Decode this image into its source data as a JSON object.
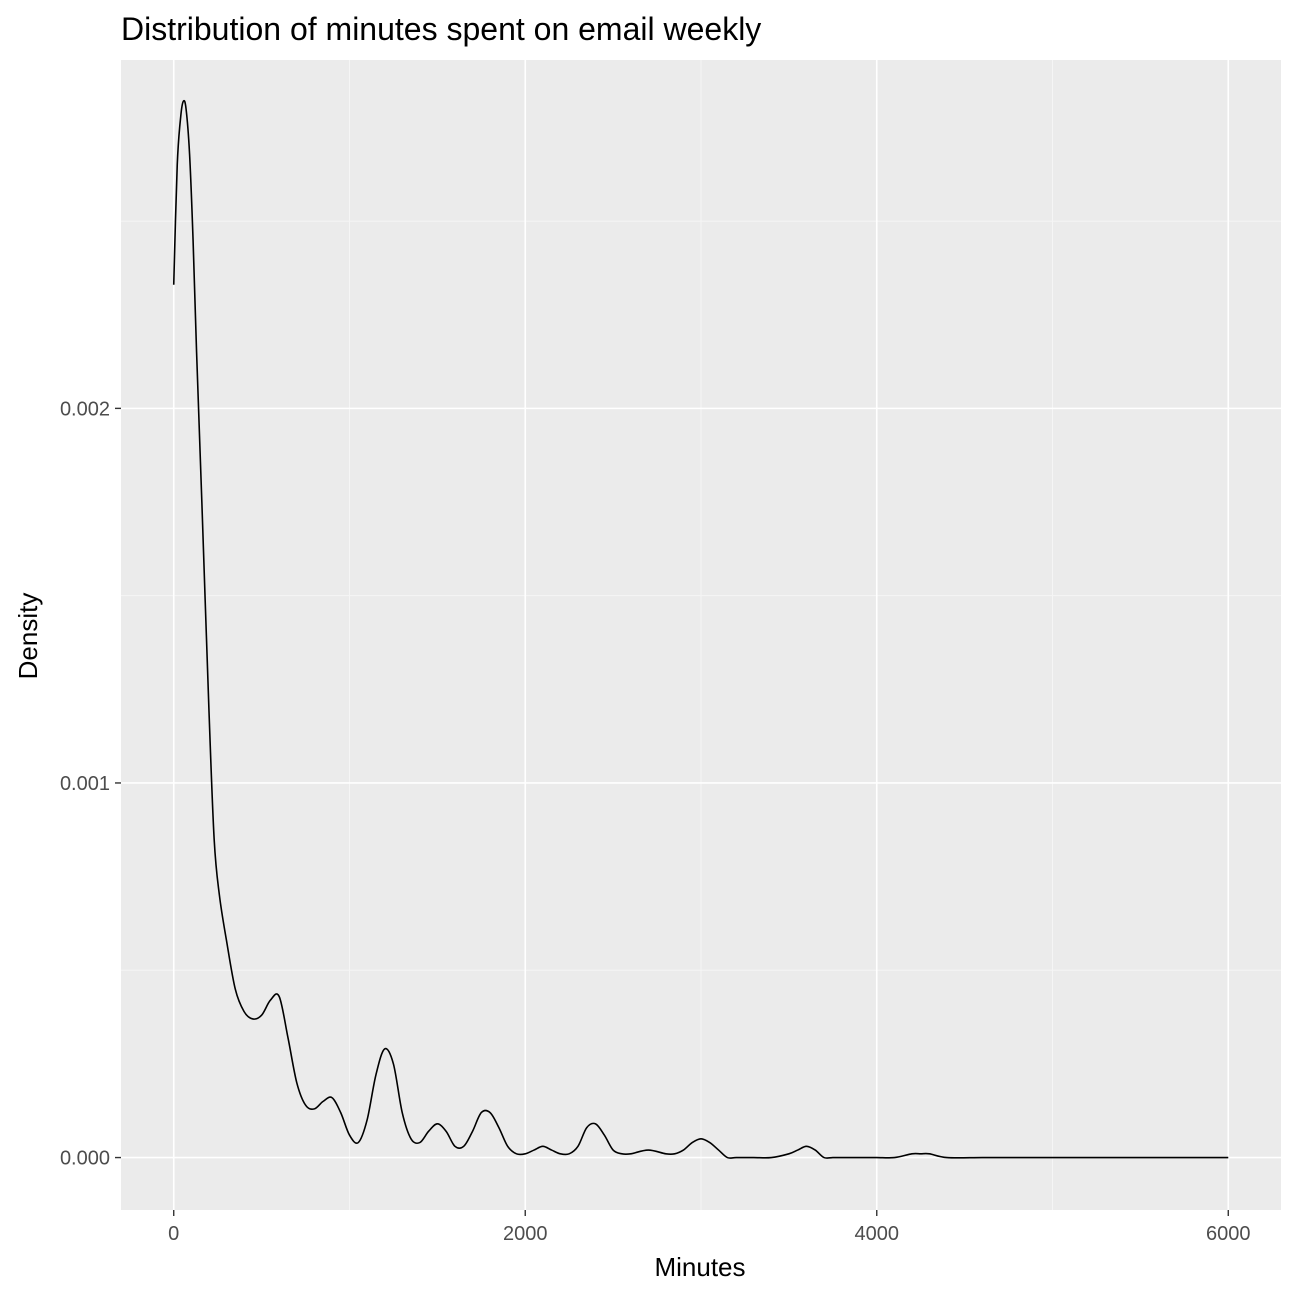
{
  "chart_data": {
    "type": "line",
    "title": "Distribution of minutes spent on email weekly",
    "xlabel": "Minutes",
    "ylabel": "Density",
    "xlim": [
      -300,
      6300
    ],
    "ylim": [
      -0.00014,
      0.00293
    ],
    "x_ticks": [
      {
        "value": 0,
        "label": "0"
      },
      {
        "value": 2000,
        "label": "2000"
      },
      {
        "value": 4000,
        "label": "4000"
      },
      {
        "value": 6000,
        "label": "6000"
      }
    ],
    "y_ticks": [
      {
        "value": 0,
        "label": "0.000"
      },
      {
        "value": 0.001,
        "label": "0.001"
      },
      {
        "value": 0.002,
        "label": "0.002"
      }
    ],
    "grid": true,
    "colors": {
      "panel_background": "#ebebeb",
      "grid_major": "#ffffff",
      "grid_minor": "#f5f5f5",
      "line": "#000000",
      "tick_text": "#4d4d4d",
      "tick_mark": "#333333"
    },
    "series": [
      {
        "x": [
          0,
          20,
          40,
          55,
          70,
          90,
          110,
          130,
          160,
          200,
          230,
          260,
          300,
          350,
          400,
          450,
          500,
          550,
          600,
          650,
          700,
          750,
          800,
          850,
          900,
          950,
          1000,
          1050,
          1100,
          1150,
          1200,
          1250,
          1300,
          1350,
          1400,
          1450,
          1500,
          1550,
          1600,
          1650,
          1700,
          1750,
          1800,
          1850,
          1900,
          1950,
          2000,
          2050,
          2100,
          2150,
          2200,
          2250,
          2300,
          2350,
          2400,
          2450,
          2500,
          2550,
          2600,
          2700,
          2800,
          2850,
          2900,
          2950,
          3000,
          3050,
          3100,
          3150,
          3200,
          3300,
          3400,
          3500,
          3550,
          3600,
          3650,
          3700,
          3750,
          3800,
          3900,
          4000,
          4100,
          4200,
          4250,
          4300,
          4400,
          4600,
          4800,
          5000,
          5200,
          5400,
          5600,
          5800,
          6000
        ],
        "y": [
          0.00233,
          0.00265,
          0.00278,
          0.00282,
          0.0028,
          0.00268,
          0.00245,
          0.00215,
          0.00175,
          0.0012,
          0.00085,
          0.0007,
          0.00058,
          0.00045,
          0.00039,
          0.00037,
          0.00038,
          0.00042,
          0.00043,
          0.00032,
          0.0002,
          0.00014,
          0.00013,
          0.00015,
          0.00016,
          0.00012,
          6e-05,
          4e-05,
          0.0001,
          0.00022,
          0.00029,
          0.00025,
          0.00012,
          5e-05,
          4e-05,
          7e-05,
          9e-05,
          7e-05,
          3e-05,
          3e-05,
          7e-05,
          0.00012,
          0.00012,
          8e-05,
          3e-05,
          1e-05,
          1e-05,
          2e-05,
          3e-05,
          2e-05,
          1e-05,
          1e-05,
          3e-05,
          8e-05,
          9e-05,
          6e-05,
          2e-05,
          1e-05,
          1e-05,
          2e-05,
          1e-05,
          1e-05,
          2e-05,
          4e-05,
          5e-05,
          4e-05,
          2e-05,
          0.0,
          0.0,
          0.0,
          0.0,
          1e-05,
          2e-05,
          3e-05,
          2e-05,
          0.0,
          0.0,
          0.0,
          0.0,
          0.0,
          0.0,
          1e-05,
          1e-05,
          1e-05,
          0.0,
          0.0,
          0.0,
          0.0,
          0.0,
          0.0,
          0.0,
          0.0,
          0.0
        ]
      }
    ]
  }
}
